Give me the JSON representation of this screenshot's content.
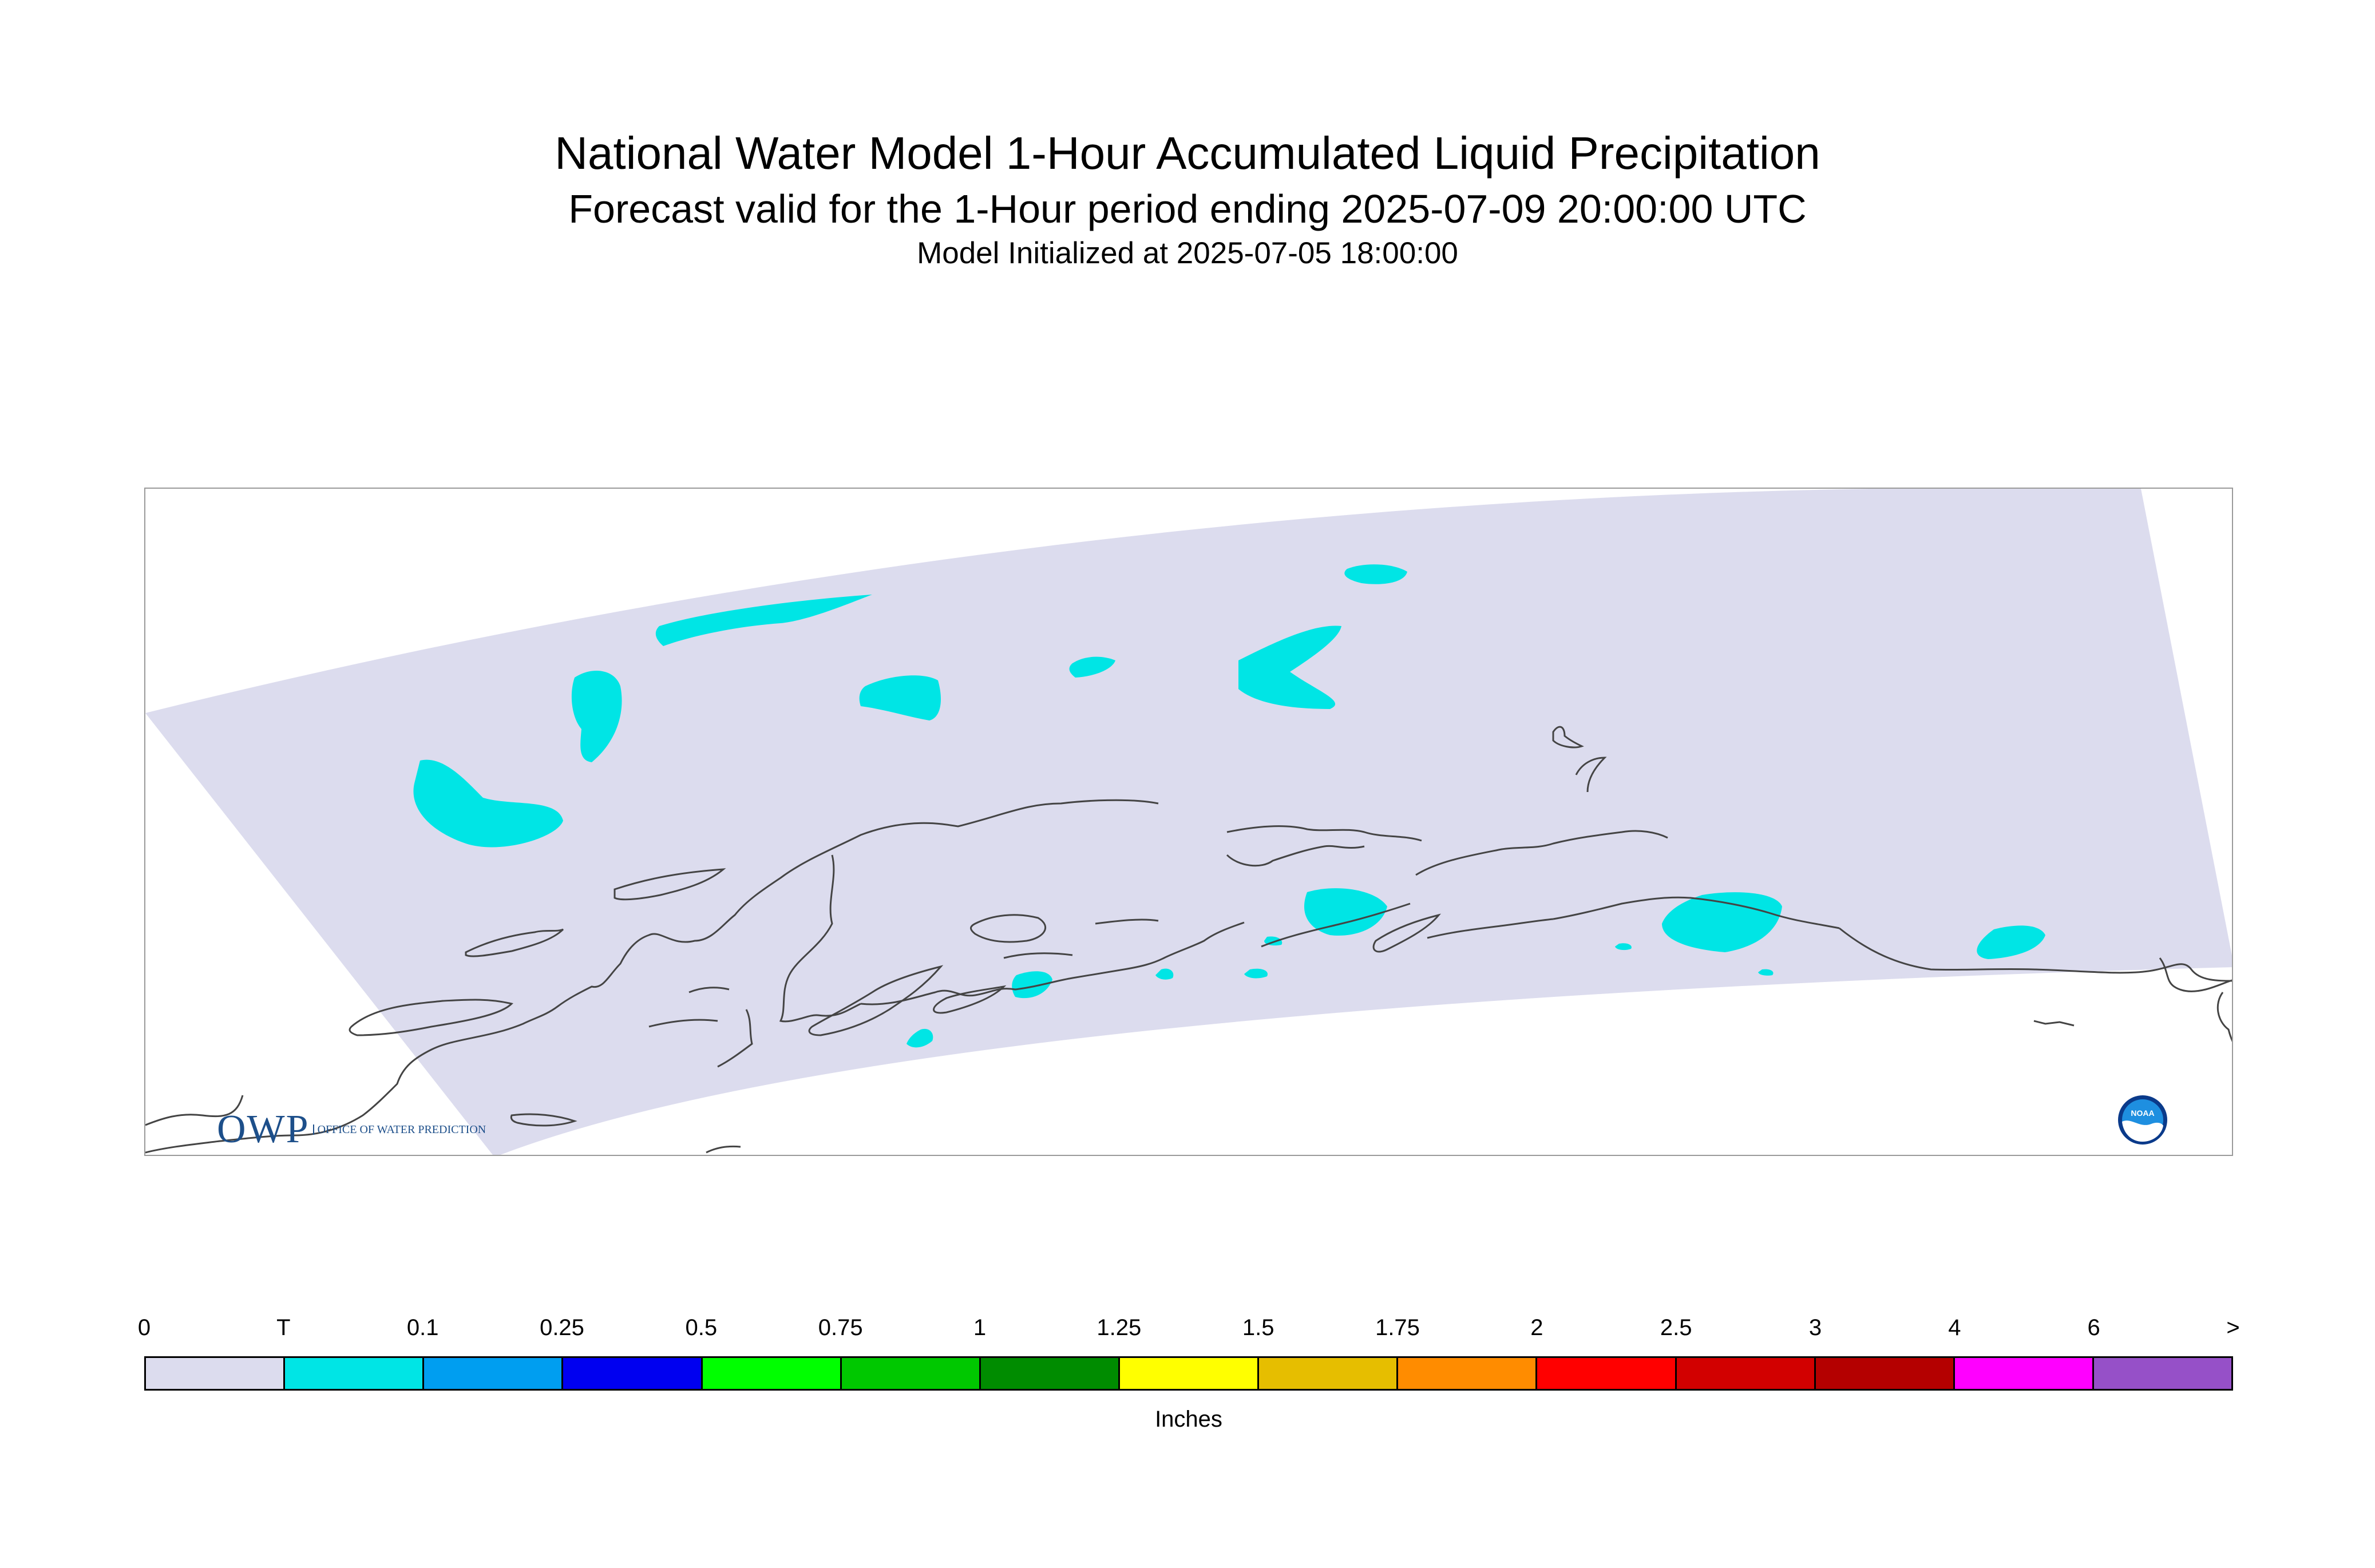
{
  "header": {
    "title": "National Water Model 1-Hour Accumulated Liquid Precipitation",
    "subtitle": "Forecast valid for the 1-Hour period ending 2025-07-09 20:00:00 UTC",
    "init": "Model Initialized at 2025-07-05 18:00:00"
  },
  "map": {
    "domain_color": "#dcdcee",
    "precip_color": "#00e5e5",
    "coastline_color": "#444444"
  },
  "logos": {
    "owp_mark": "OWP",
    "owp_text": "Office of Water Prediction",
    "noaa_text": "NOAA"
  },
  "legend": {
    "unit_label": "Inches",
    "tick_labels": [
      "0",
      "T",
      "0.1",
      "0.25",
      "0.5",
      "0.75",
      "1",
      "1.25",
      "1.5",
      "1.75",
      "2",
      "2.5",
      "3",
      "4",
      "6",
      ">"
    ],
    "colors": [
      "#dcdcee",
      "#00e5e5",
      "#009ef0",
      "#0000f0",
      "#00ff00",
      "#00c800",
      "#008c00",
      "#ffff00",
      "#e6be00",
      "#ff8c00",
      "#ff0000",
      "#d20000",
      "#b40000",
      "#ff00ff",
      "#9650c8"
    ]
  }
}
